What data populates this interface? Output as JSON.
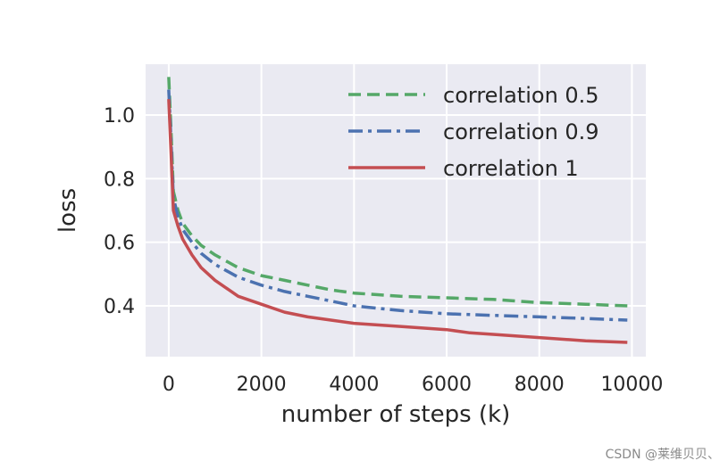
{
  "chart_data": {
    "type": "line",
    "title": "",
    "xlabel": "number of steps (k)",
    "ylabel": "loss",
    "xlim": [
      -500,
      10300
    ],
    "ylim": [
      0.24,
      1.16
    ],
    "xticks": [
      0,
      2000,
      4000,
      6000,
      8000,
      10000
    ],
    "xtick_labels": [
      "0",
      "2000",
      "4000",
      "6000",
      "8000",
      "10000"
    ],
    "yticks": [
      0.4,
      0.6,
      0.8,
      1.0
    ],
    "ytick_labels": [
      "0.4",
      "0.6",
      "0.8",
      "1.0"
    ],
    "grid": true,
    "legend_position": "top-right",
    "series": [
      {
        "name": "correlation 0.5",
        "color": "#55a868",
        "dash": "dashed",
        "x": [
          0,
          50,
          100,
          200,
          300,
          500,
          700,
          1000,
          1500,
          2000,
          2500,
          3000,
          3500,
          4000,
          5000,
          6000,
          7000,
          8000,
          9000,
          9900
        ],
        "y": [
          1.12,
          0.95,
          0.76,
          0.7,
          0.66,
          0.62,
          0.59,
          0.56,
          0.52,
          0.495,
          0.48,
          0.465,
          0.45,
          0.44,
          0.43,
          0.425,
          0.42,
          0.41,
          0.405,
          0.4
        ]
      },
      {
        "name": "correlation 0.9",
        "color": "#4c72b0",
        "dash": "dashdot",
        "x": [
          0,
          50,
          100,
          200,
          300,
          500,
          700,
          1000,
          1500,
          2000,
          2500,
          3000,
          3500,
          4000,
          5000,
          6000,
          7000,
          8000,
          9000,
          9900
        ],
        "y": [
          1.08,
          0.92,
          0.74,
          0.68,
          0.64,
          0.6,
          0.565,
          0.53,
          0.49,
          0.465,
          0.445,
          0.43,
          0.415,
          0.4,
          0.385,
          0.375,
          0.37,
          0.365,
          0.36,
          0.355
        ]
      },
      {
        "name": "correlation 1",
        "color": "#c44e52",
        "dash": "solid",
        "x": [
          0,
          50,
          100,
          200,
          300,
          500,
          700,
          1000,
          1500,
          2000,
          2500,
          3000,
          3500,
          4000,
          5000,
          6000,
          6500,
          7000,
          8000,
          9000,
          9900
        ],
        "y": [
          1.05,
          0.88,
          0.7,
          0.65,
          0.61,
          0.56,
          0.52,
          0.48,
          0.43,
          0.405,
          0.38,
          0.365,
          0.355,
          0.345,
          0.335,
          0.325,
          0.315,
          0.31,
          0.3,
          0.29,
          0.285
        ]
      }
    ]
  },
  "watermark": "CSDN @莱维贝贝、"
}
